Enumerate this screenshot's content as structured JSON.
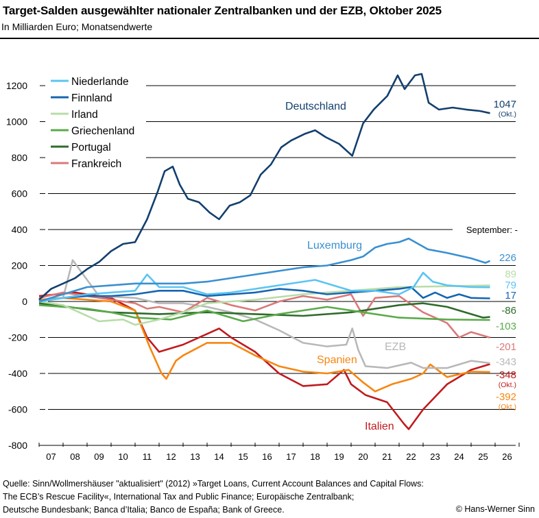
{
  "header": {
    "title": "Target-Salden ausgewählter nationaler Zentralbanken und der EZB, Oktober 2025",
    "subtitle": "In Milliarden Euro; Monatsendwerte"
  },
  "footer": {
    "source_lines": [
      "Quelle: Sinn/Wollmershäuser \"aktualisiert\" (2012) »Target Loans, Current Account Balances and Capital Flows:",
      "The ECB’s Rescue Facility«, International Tax and Public Finance; Europäische Zentralbank;",
      "Deutsche Bundesbank; Banca d’Italia; Banco de España; Bank of Greece."
    ],
    "copyright": "© Hans-Werner Sinn"
  },
  "chart_data": {
    "type": "line",
    "title": "Target-Salden ausgewählter nationaler Zentralbanken und der EZB, Oktober 2025",
    "ylabel": "In Milliarden Euro; Monatsendwerte",
    "ylim": [
      -800,
      1200
    ],
    "yticks": [
      "1200",
      "1000",
      "800",
      "600",
      "400",
      "200",
      "0",
      "-200",
      "-400",
      "-600",
      "-800"
    ],
    "xlim": [
      2007,
      2027
    ],
    "xticks": [
      "07",
      "08",
      "09",
      "10",
      "11",
      "12",
      "13",
      "14",
      "15",
      "16",
      "17",
      "18",
      "19",
      "20",
      "21",
      "22",
      "23",
      "24",
      "25",
      "26"
    ],
    "grid": true,
    "legend_position": "top-left",
    "september_marker": "September: -",
    "okt_note": "(Okt.)",
    "series": [
      {
        "name": "Deutschland",
        "color": "#123f6e",
        "label_inline": true,
        "end_label": "1047",
        "end_note": "(Okt.)",
        "points": [
          [
            2007.0,
            10
          ],
          [
            2007.5,
            70
          ],
          [
            2008.0,
            100
          ],
          [
            2008.5,
            130
          ],
          [
            2009.0,
            180
          ],
          [
            2009.5,
            220
          ],
          [
            2010.0,
            280
          ],
          [
            2010.5,
            320
          ],
          [
            2011.0,
            330
          ],
          [
            2011.5,
            457
          ],
          [
            2011.94,
            610
          ],
          [
            2012.23,
            724
          ],
          [
            2012.57,
            750
          ],
          [
            2012.86,
            650
          ],
          [
            2013.2,
            571
          ],
          [
            2013.66,
            552
          ],
          [
            2014.1,
            495
          ],
          [
            2014.5,
            457
          ],
          [
            2014.94,
            533
          ],
          [
            2015.37,
            552
          ],
          [
            2015.8,
            590
          ],
          [
            2016.23,
            705
          ],
          [
            2016.66,
            762
          ],
          [
            2017.09,
            857
          ],
          [
            2017.5,
            895
          ],
          [
            2018.09,
            933
          ],
          [
            2018.5,
            952
          ],
          [
            2018.94,
            914
          ],
          [
            2019.5,
            876
          ],
          [
            2020.05,
            810
          ],
          [
            2020.5,
            990
          ],
          [
            2020.94,
            1067
          ],
          [
            2021.51,
            1143
          ],
          [
            2021.94,
            1257
          ],
          [
            2022.23,
            1181
          ],
          [
            2022.66,
            1257
          ],
          [
            2022.94,
            1265
          ],
          [
            2023.23,
            1105
          ],
          [
            2023.66,
            1067
          ],
          [
            2024.23,
            1078
          ],
          [
            2024.8,
            1067
          ],
          [
            2025.37,
            1059
          ],
          [
            2025.79,
            1047
          ]
        ]
      },
      {
        "name": "Luxemburg",
        "color": "#3a8fd0",
        "label_inline": true,
        "end_label": "226",
        "points": [
          [
            2007.0,
            0
          ],
          [
            2008.0,
            40
          ],
          [
            2009.0,
            80
          ],
          [
            2010.0,
            90
          ],
          [
            2011.0,
            100
          ],
          [
            2012.0,
            100
          ],
          [
            2013.0,
            100
          ],
          [
            2014.0,
            110
          ],
          [
            2015.0,
            130
          ],
          [
            2016.0,
            150
          ],
          [
            2017.0,
            170
          ],
          [
            2018.0,
            190
          ],
          [
            2019.0,
            200
          ],
          [
            2020.0,
            230
          ],
          [
            2020.5,
            250
          ],
          [
            2021.0,
            300
          ],
          [
            2021.5,
            320
          ],
          [
            2022.0,
            330
          ],
          [
            2022.4,
            350
          ],
          [
            2022.8,
            320
          ],
          [
            2023.2,
            290
          ],
          [
            2024.0,
            270
          ],
          [
            2025.0,
            240
          ],
          [
            2025.6,
            215
          ],
          [
            2025.79,
            226
          ]
        ]
      },
      {
        "name": "Niederlande",
        "color": "#5bc4f2",
        "legend": true,
        "end_label": "79",
        "points": [
          [
            2007.0,
            0
          ],
          [
            2008.0,
            20
          ],
          [
            2009.0,
            40
          ],
          [
            2010.0,
            50
          ],
          [
            2011.0,
            60
          ],
          [
            2011.5,
            150
          ],
          [
            2012.0,
            80
          ],
          [
            2013.0,
            80
          ],
          [
            2014.0,
            40
          ],
          [
            2015.0,
            50
          ],
          [
            2016.0,
            70
          ],
          [
            2017.0,
            90
          ],
          [
            2018.0,
            110
          ],
          [
            2018.5,
            120
          ],
          [
            2019.0,
            100
          ],
          [
            2020.0,
            60
          ],
          [
            2021.0,
            60
          ],
          [
            2022.0,
            40
          ],
          [
            2022.6,
            80
          ],
          [
            2023.0,
            160
          ],
          [
            2023.4,
            110
          ],
          [
            2024.0,
            90
          ],
          [
            2025.0,
            80
          ],
          [
            2025.79,
            79
          ]
        ]
      },
      {
        "name": "Finnland",
        "color": "#1565b0",
        "legend": true,
        "end_label": "17",
        "points": [
          [
            2007.0,
            0
          ],
          [
            2008.0,
            20
          ],
          [
            2009.0,
            30
          ],
          [
            2010.0,
            30
          ],
          [
            2011.0,
            40
          ],
          [
            2012.0,
            60
          ],
          [
            2013.0,
            60
          ],
          [
            2014.0,
            30
          ],
          [
            2015.0,
            40
          ],
          [
            2016.0,
            50
          ],
          [
            2017.0,
            70
          ],
          [
            2018.0,
            60
          ],
          [
            2019.0,
            40
          ],
          [
            2020.0,
            50
          ],
          [
            2021.0,
            60
          ],
          [
            2022.0,
            70
          ],
          [
            2022.5,
            80
          ],
          [
            2023.0,
            20
          ],
          [
            2023.5,
            50
          ],
          [
            2024.0,
            20
          ],
          [
            2024.5,
            40
          ],
          [
            2025.0,
            20
          ],
          [
            2025.79,
            17
          ]
        ]
      },
      {
        "name": "Irland",
        "color": "#b8dca8",
        "legend": true,
        "end_label": "89",
        "points": [
          [
            2007.0,
            0
          ],
          [
            2008.0,
            -20
          ],
          [
            2008.5,
            -50
          ],
          [
            2009.5,
            -110
          ],
          [
            2010.5,
            -100
          ],
          [
            2011.0,
            -130
          ],
          [
            2012.0,
            -100
          ],
          [
            2013.0,
            -60
          ],
          [
            2014.0,
            -10
          ],
          [
            2015.0,
            0
          ],
          [
            2016.0,
            10
          ],
          [
            2018.0,
            40
          ],
          [
            2020.0,
            60
          ],
          [
            2022.0,
            80
          ],
          [
            2024.0,
            85
          ],
          [
            2025.79,
            89
          ]
        ]
      },
      {
        "name": "Griechenland",
        "color": "#5aaa4a",
        "legend": true,
        "end_label": "-103",
        "points": [
          [
            2007.0,
            -20
          ],
          [
            2009.0,
            -40
          ],
          [
            2010.0,
            -60
          ],
          [
            2011.0,
            -90
          ],
          [
            2012.5,
            -100
          ],
          [
            2014.0,
            -50
          ],
          [
            2015.5,
            -110
          ],
          [
            2017.0,
            -70
          ],
          [
            2019.0,
            -30
          ],
          [
            2020.5,
            -60
          ],
          [
            2022.0,
            -90
          ],
          [
            2024.0,
            -100
          ],
          [
            2025.79,
            -103
          ]
        ]
      },
      {
        "name": "Portugal",
        "color": "#2e6b2a",
        "legend": true,
        "end_label": "-86",
        "points": [
          [
            2007.0,
            -10
          ],
          [
            2010.0,
            -60
          ],
          [
            2012.0,
            -70
          ],
          [
            2014.0,
            -60
          ],
          [
            2016.0,
            -70
          ],
          [
            2018.0,
            -80
          ],
          [
            2020.0,
            -60
          ],
          [
            2022.0,
            -20
          ],
          [
            2023.0,
            -10
          ],
          [
            2024.0,
            -30
          ],
          [
            2025.5,
            -90
          ],
          [
            2025.79,
            -86
          ]
        ]
      },
      {
        "name": "Frankreich",
        "color": "#d9797a",
        "legend": true,
        "end_label": "-201",
        "points": [
          [
            2007.0,
            20
          ],
          [
            2008.0,
            50
          ],
          [
            2009.0,
            30
          ],
          [
            2010.0,
            10
          ],
          [
            2011.0,
            -10
          ],
          [
            2011.5,
            -40
          ],
          [
            2012.0,
            -30
          ],
          [
            2013.0,
            -60
          ],
          [
            2014.0,
            20
          ],
          [
            2015.0,
            -20
          ],
          [
            2016.0,
            -50
          ],
          [
            2017.0,
            0
          ],
          [
            2018.0,
            30
          ],
          [
            2019.0,
            10
          ],
          [
            2020.0,
            40
          ],
          [
            2020.5,
            -80
          ],
          [
            2021.0,
            20
          ],
          [
            2022.0,
            30
          ],
          [
            2023.0,
            -60
          ],
          [
            2024.0,
            -120
          ],
          [
            2024.5,
            -200
          ],
          [
            2025.0,
            -170
          ],
          [
            2025.79,
            -201
          ]
        ]
      },
      {
        "name": "EZB",
        "color": "#b8b8b8",
        "label_inline": true,
        "end_label": "-343",
        "points": [
          [
            2007.0,
            0
          ],
          [
            2008.0,
            20
          ],
          [
            2008.4,
            230
          ],
          [
            2009.0,
            120
          ],
          [
            2009.5,
            30
          ],
          [
            2011.0,
            20
          ],
          [
            2012.0,
            -10
          ],
          [
            2013.0,
            -10
          ],
          [
            2014.0,
            -30
          ],
          [
            2015.0,
            -60
          ],
          [
            2016.0,
            -100
          ],
          [
            2017.0,
            -160
          ],
          [
            2018.0,
            -230
          ],
          [
            2019.0,
            -250
          ],
          [
            2019.8,
            -240
          ],
          [
            2020.05,
            -150
          ],
          [
            2020.3,
            -270
          ],
          [
            2020.6,
            -360
          ],
          [
            2021.5,
            -370
          ],
          [
            2022.5,
            -340
          ],
          [
            2023.0,
            -370
          ],
          [
            2024.0,
            -370
          ],
          [
            2025.0,
            -330
          ],
          [
            2025.79,
            -343
          ]
        ]
      },
      {
        "name": "Spanien",
        "color": "#f7860f",
        "label_inline": true,
        "end_label": "-392",
        "end_note": "(Okt.)",
        "points": [
          [
            2007.0,
            10
          ],
          [
            2008.0,
            20
          ],
          [
            2010.0,
            0
          ],
          [
            2011.0,
            -50
          ],
          [
            2011.6,
            -250
          ],
          [
            2012.1,
            -400
          ],
          [
            2012.3,
            -430
          ],
          [
            2012.7,
            -330
          ],
          [
            2013.0,
            -300
          ],
          [
            2014.0,
            -230
          ],
          [
            2015.0,
            -230
          ],
          [
            2016.0,
            -300
          ],
          [
            2017.0,
            -360
          ],
          [
            2018.0,
            -390
          ],
          [
            2019.0,
            -400
          ],
          [
            2019.9,
            -380
          ],
          [
            2020.5,
            -450
          ],
          [
            2021.0,
            -500
          ],
          [
            2021.7,
            -460
          ],
          [
            2022.5,
            -430
          ],
          [
            2023.0,
            -400
          ],
          [
            2023.3,
            -350
          ],
          [
            2024.0,
            -420
          ],
          [
            2025.0,
            -390
          ],
          [
            2025.79,
            -392
          ]
        ]
      },
      {
        "name": "Italien",
        "color": "#c01a1e",
        "label_inline": true,
        "end_label": "-348",
        "end_note": "(Okt.)",
        "points": [
          [
            2007.0,
            30
          ],
          [
            2008.5,
            50
          ],
          [
            2010.0,
            20
          ],
          [
            2011.0,
            -50
          ],
          [
            2011.5,
            -200
          ],
          [
            2012.0,
            -280
          ],
          [
            2013.0,
            -240
          ],
          [
            2014.0,
            -180
          ],
          [
            2014.5,
            -150
          ],
          [
            2015.0,
            -200
          ],
          [
            2016.0,
            -280
          ],
          [
            2017.0,
            -400
          ],
          [
            2018.0,
            -470
          ],
          [
            2019.0,
            -460
          ],
          [
            2019.7,
            -380
          ],
          [
            2020.0,
            -460
          ],
          [
            2020.6,
            -520
          ],
          [
            2021.5,
            -560
          ],
          [
            2022.2,
            -680
          ],
          [
            2022.4,
            -710
          ],
          [
            2023.0,
            -600
          ],
          [
            2024.0,
            -460
          ],
          [
            2025.0,
            -380
          ],
          [
            2025.79,
            -348
          ]
        ]
      }
    ]
  }
}
